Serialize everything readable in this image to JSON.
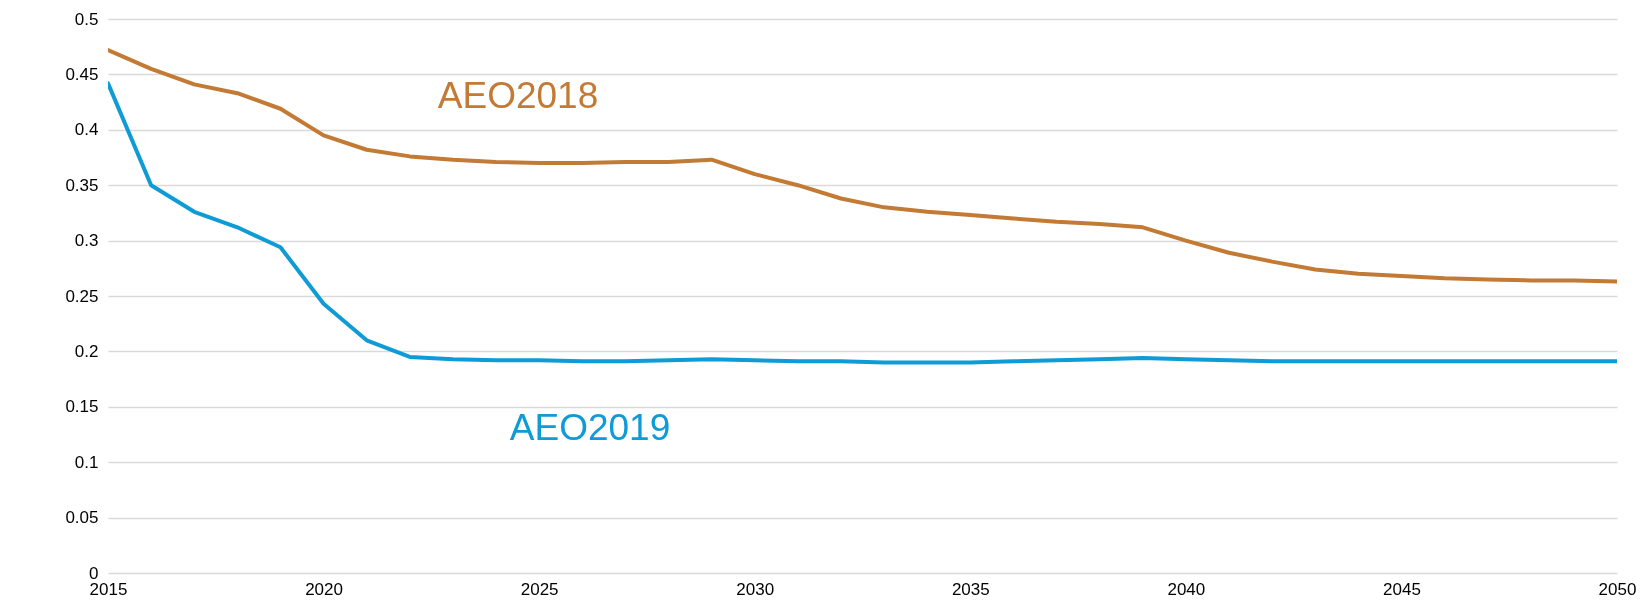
{
  "chart_data": {
    "type": "line",
    "x": [
      2015,
      2016,
      2017,
      2018,
      2019,
      2020,
      2021,
      2022,
      2023,
      2024,
      2025,
      2026,
      2027,
      2028,
      2029,
      2030,
      2031,
      2032,
      2033,
      2034,
      2035,
      2036,
      2037,
      2038,
      2039,
      2040,
      2041,
      2042,
      2043,
      2044,
      2045,
      2046,
      2047,
      2048,
      2049,
      2050
    ],
    "series": [
      {
        "name": "AEO2018",
        "color": "#c27a34",
        "values": [
          0.472,
          0.455,
          0.441,
          0.433,
          0.419,
          0.395,
          0.382,
          0.376,
          0.373,
          0.371,
          0.37,
          0.37,
          0.371,
          0.371,
          0.373,
          0.36,
          0.35,
          0.338,
          0.33,
          0.326,
          0.323,
          0.32,
          0.317,
          0.315,
          0.312,
          0.3,
          0.289,
          0.281,
          0.274,
          0.27,
          0.268,
          0.266,
          0.265,
          0.264,
          0.264,
          0.263
        ]
      },
      {
        "name": "AEO2019",
        "color": "#0e9bd6",
        "values": [
          0.442,
          0.35,
          0.326,
          0.312,
          0.294,
          0.243,
          0.21,
          0.195,
          0.193,
          0.192,
          0.192,
          0.191,
          0.191,
          0.192,
          0.193,
          0.192,
          0.191,
          0.191,
          0.19,
          0.19,
          0.19,
          0.191,
          0.192,
          0.193,
          0.194,
          0.193,
          0.192,
          0.191,
          0.191,
          0.191,
          0.191,
          0.191,
          0.191,
          0.191,
          0.191,
          0.191
        ]
      }
    ],
    "xlim": [
      2015,
      2050
    ],
    "xticks": [
      2015,
      2020,
      2025,
      2030,
      2035,
      2040,
      2045,
      2050
    ],
    "ylim": [
      0,
      0.5
    ],
    "yticks": [
      0,
      0.05,
      0.1,
      0.15,
      0.2,
      0.25,
      0.3,
      0.35,
      0.4,
      0.45,
      0.5
    ],
    "grid": "y"
  }
}
